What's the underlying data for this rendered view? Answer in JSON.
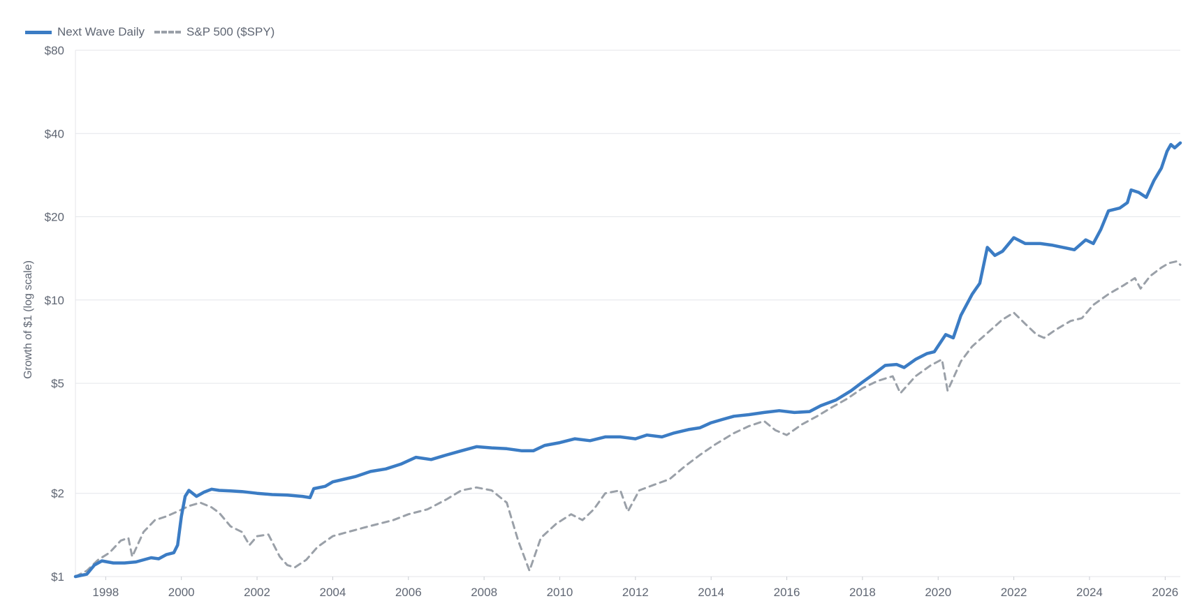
{
  "legend": {
    "items": [
      {
        "label": "Next Wave Daily",
        "color": "#3b7cc4",
        "style": "solid"
      },
      {
        "label": "S&P 500 ($SPY)",
        "color": "#9aa0a8",
        "style": "dashed"
      }
    ],
    "placement": "top-left"
  },
  "chart_data": {
    "type": "line",
    "title": "",
    "xlabel": "",
    "ylabel": "Growth of $1 (log scale)",
    "y_scale": "log",
    "ylim": [
      1,
      80
    ],
    "xlim": [
      1997.2,
      2026.4
    ],
    "grid": true,
    "y_ticks": [
      {
        "value": 1,
        "label": "$1"
      },
      {
        "value": 2,
        "label": "$2"
      },
      {
        "value": 5,
        "label": "$5"
      },
      {
        "value": 10,
        "label": "$10"
      },
      {
        "value": 20,
        "label": "$20"
      },
      {
        "value": 40,
        "label": "$40"
      },
      {
        "value": 80,
        "label": "$80"
      }
    ],
    "x_ticks": [
      {
        "value": 1998,
        "label": "1998"
      },
      {
        "value": 2000,
        "label": "2000"
      },
      {
        "value": 2002,
        "label": "2002"
      },
      {
        "value": 2004,
        "label": "2004"
      },
      {
        "value": 2006,
        "label": "2006"
      },
      {
        "value": 2008,
        "label": "2008"
      },
      {
        "value": 2010,
        "label": "2010"
      },
      {
        "value": 2012,
        "label": "2012"
      },
      {
        "value": 2014,
        "label": "2014"
      },
      {
        "value": 2016,
        "label": "2016"
      },
      {
        "value": 2018,
        "label": "2018"
      },
      {
        "value": 2020,
        "label": "2020"
      },
      {
        "value": 2022,
        "label": "2022"
      },
      {
        "value": 2024,
        "label": "2024"
      },
      {
        "value": 2026,
        "label": "2026"
      }
    ],
    "series": [
      {
        "name": "Next Wave Daily",
        "color": "#3b7cc4",
        "style": "solid",
        "points": [
          [
            1997.2,
            1.0
          ],
          [
            1997.5,
            1.02
          ],
          [
            1997.7,
            1.1
          ],
          [
            1997.9,
            1.14
          ],
          [
            1998.2,
            1.12
          ],
          [
            1998.5,
            1.12
          ],
          [
            1998.8,
            1.13
          ],
          [
            1999.0,
            1.15
          ],
          [
            1999.2,
            1.17
          ],
          [
            1999.4,
            1.16
          ],
          [
            1999.6,
            1.2
          ],
          [
            1999.8,
            1.22
          ],
          [
            1999.9,
            1.3
          ],
          [
            2000.0,
            1.65
          ],
          [
            2000.1,
            1.95
          ],
          [
            2000.2,
            2.05
          ],
          [
            2000.4,
            1.95
          ],
          [
            2000.6,
            2.02
          ],
          [
            2000.8,
            2.07
          ],
          [
            2001.0,
            2.05
          ],
          [
            2001.3,
            2.04
          ],
          [
            2001.6,
            2.03
          ],
          [
            2002.0,
            2.0
          ],
          [
            2002.4,
            1.98
          ],
          [
            2002.8,
            1.97
          ],
          [
            2003.2,
            1.95
          ],
          [
            2003.4,
            1.93
          ],
          [
            2003.5,
            2.08
          ],
          [
            2003.8,
            2.12
          ],
          [
            2004.0,
            2.2
          ],
          [
            2004.3,
            2.25
          ],
          [
            2004.6,
            2.3
          ],
          [
            2005.0,
            2.4
          ],
          [
            2005.4,
            2.45
          ],
          [
            2005.8,
            2.55
          ],
          [
            2006.2,
            2.7
          ],
          [
            2006.6,
            2.65
          ],
          [
            2007.0,
            2.75
          ],
          [
            2007.4,
            2.85
          ],
          [
            2007.8,
            2.95
          ],
          [
            2008.2,
            2.92
          ],
          [
            2008.6,
            2.9
          ],
          [
            2009.0,
            2.85
          ],
          [
            2009.3,
            2.85
          ],
          [
            2009.6,
            2.98
          ],
          [
            2010.0,
            3.05
          ],
          [
            2010.4,
            3.15
          ],
          [
            2010.8,
            3.1
          ],
          [
            2011.2,
            3.2
          ],
          [
            2011.6,
            3.2
          ],
          [
            2012.0,
            3.15
          ],
          [
            2012.3,
            3.25
          ],
          [
            2012.7,
            3.2
          ],
          [
            2013.0,
            3.3
          ],
          [
            2013.4,
            3.4
          ],
          [
            2013.7,
            3.45
          ],
          [
            2014.0,
            3.6
          ],
          [
            2014.3,
            3.7
          ],
          [
            2014.6,
            3.8
          ],
          [
            2015.0,
            3.85
          ],
          [
            2015.4,
            3.92
          ],
          [
            2015.8,
            3.98
          ],
          [
            2016.2,
            3.92
          ],
          [
            2016.6,
            3.95
          ],
          [
            2016.9,
            4.15
          ],
          [
            2017.3,
            4.35
          ],
          [
            2017.7,
            4.7
          ],
          [
            2018.0,
            5.05
          ],
          [
            2018.3,
            5.4
          ],
          [
            2018.6,
            5.8
          ],
          [
            2018.9,
            5.85
          ],
          [
            2019.1,
            5.7
          ],
          [
            2019.4,
            6.1
          ],
          [
            2019.7,
            6.4
          ],
          [
            2019.9,
            6.5
          ],
          [
            2020.2,
            7.5
          ],
          [
            2020.4,
            7.3
          ],
          [
            2020.6,
            8.8
          ],
          [
            2020.9,
            10.5
          ],
          [
            2021.1,
            11.5
          ],
          [
            2021.3,
            15.5
          ],
          [
            2021.5,
            14.5
          ],
          [
            2021.7,
            15.0
          ],
          [
            2022.0,
            16.8
          ],
          [
            2022.3,
            16.0
          ],
          [
            2022.7,
            16.0
          ],
          [
            2023.0,
            15.8
          ],
          [
            2023.3,
            15.5
          ],
          [
            2023.6,
            15.2
          ],
          [
            2023.9,
            16.5
          ],
          [
            2024.1,
            16.0
          ],
          [
            2024.3,
            18.0
          ],
          [
            2024.5,
            21.0
          ],
          [
            2024.8,
            21.5
          ],
          [
            2025.0,
            22.5
          ],
          [
            2025.1,
            25.0
          ],
          [
            2025.3,
            24.5
          ],
          [
            2025.5,
            23.5
          ],
          [
            2025.7,
            27.0
          ],
          [
            2025.9,
            30.0
          ],
          [
            2026.05,
            34.5
          ],
          [
            2026.15,
            36.5
          ],
          [
            2026.25,
            35.5
          ],
          [
            2026.4,
            37.0
          ]
        ]
      },
      {
        "name": "S&P 500 ($SPY)",
        "color": "#9aa0a8",
        "style": "dashed",
        "points": [
          [
            1997.2,
            1.0
          ],
          [
            1997.5,
            1.05
          ],
          [
            1997.8,
            1.15
          ],
          [
            1998.1,
            1.22
          ],
          [
            1998.4,
            1.35
          ],
          [
            1998.6,
            1.38
          ],
          [
            1998.7,
            1.18
          ],
          [
            1999.0,
            1.45
          ],
          [
            1999.3,
            1.6
          ],
          [
            1999.6,
            1.65
          ],
          [
            1999.9,
            1.72
          ],
          [
            2000.2,
            1.8
          ],
          [
            2000.5,
            1.85
          ],
          [
            2000.8,
            1.78
          ],
          [
            2001.0,
            1.7
          ],
          [
            2001.3,
            1.52
          ],
          [
            2001.6,
            1.45
          ],
          [
            2001.8,
            1.3
          ],
          [
            2002.0,
            1.4
          ],
          [
            2002.3,
            1.42
          ],
          [
            2002.6,
            1.18
          ],
          [
            2002.8,
            1.1
          ],
          [
            2003.0,
            1.08
          ],
          [
            2003.3,
            1.15
          ],
          [
            2003.6,
            1.28
          ],
          [
            2004.0,
            1.4
          ],
          [
            2004.4,
            1.45
          ],
          [
            2004.8,
            1.5
          ],
          [
            2005.2,
            1.55
          ],
          [
            2005.6,
            1.6
          ],
          [
            2006.0,
            1.68
          ],
          [
            2006.5,
            1.75
          ],
          [
            2007.0,
            1.9
          ],
          [
            2007.4,
            2.05
          ],
          [
            2007.8,
            2.1
          ],
          [
            2008.2,
            2.05
          ],
          [
            2008.6,
            1.85
          ],
          [
            2008.9,
            1.35
          ],
          [
            2009.2,
            1.05
          ],
          [
            2009.5,
            1.38
          ],
          [
            2009.9,
            1.55
          ],
          [
            2010.3,
            1.68
          ],
          [
            2010.6,
            1.6
          ],
          [
            2010.9,
            1.75
          ],
          [
            2011.2,
            2.0
          ],
          [
            2011.6,
            2.05
          ],
          [
            2011.8,
            1.72
          ],
          [
            2012.1,
            2.05
          ],
          [
            2012.5,
            2.15
          ],
          [
            2012.9,
            2.25
          ],
          [
            2013.3,
            2.5
          ],
          [
            2013.7,
            2.75
          ],
          [
            2014.1,
            3.0
          ],
          [
            2014.6,
            3.3
          ],
          [
            2015.0,
            3.5
          ],
          [
            2015.4,
            3.65
          ],
          [
            2015.7,
            3.38
          ],
          [
            2016.0,
            3.25
          ],
          [
            2016.4,
            3.55
          ],
          [
            2016.8,
            3.8
          ],
          [
            2017.2,
            4.1
          ],
          [
            2017.6,
            4.4
          ],
          [
            2018.0,
            4.8
          ],
          [
            2018.4,
            5.1
          ],
          [
            2018.8,
            5.3
          ],
          [
            2019.0,
            4.6
          ],
          [
            2019.4,
            5.3
          ],
          [
            2019.8,
            5.8
          ],
          [
            2020.1,
            6.1
          ],
          [
            2020.25,
            4.7
          ],
          [
            2020.6,
            6.0
          ],
          [
            2020.9,
            6.8
          ],
          [
            2021.3,
            7.6
          ],
          [
            2021.7,
            8.5
          ],
          [
            2022.0,
            9.0
          ],
          [
            2022.3,
            8.2
          ],
          [
            2022.6,
            7.5
          ],
          [
            2022.8,
            7.3
          ],
          [
            2023.1,
            7.8
          ],
          [
            2023.5,
            8.4
          ],
          [
            2023.8,
            8.6
          ],
          [
            2024.1,
            9.6
          ],
          [
            2024.5,
            10.5
          ],
          [
            2024.9,
            11.3
          ],
          [
            2025.2,
            12.0
          ],
          [
            2025.35,
            11.0
          ],
          [
            2025.6,
            12.2
          ],
          [
            2025.9,
            13.1
          ],
          [
            2026.1,
            13.6
          ],
          [
            2026.3,
            13.8
          ],
          [
            2026.4,
            13.4
          ]
        ]
      }
    ]
  }
}
